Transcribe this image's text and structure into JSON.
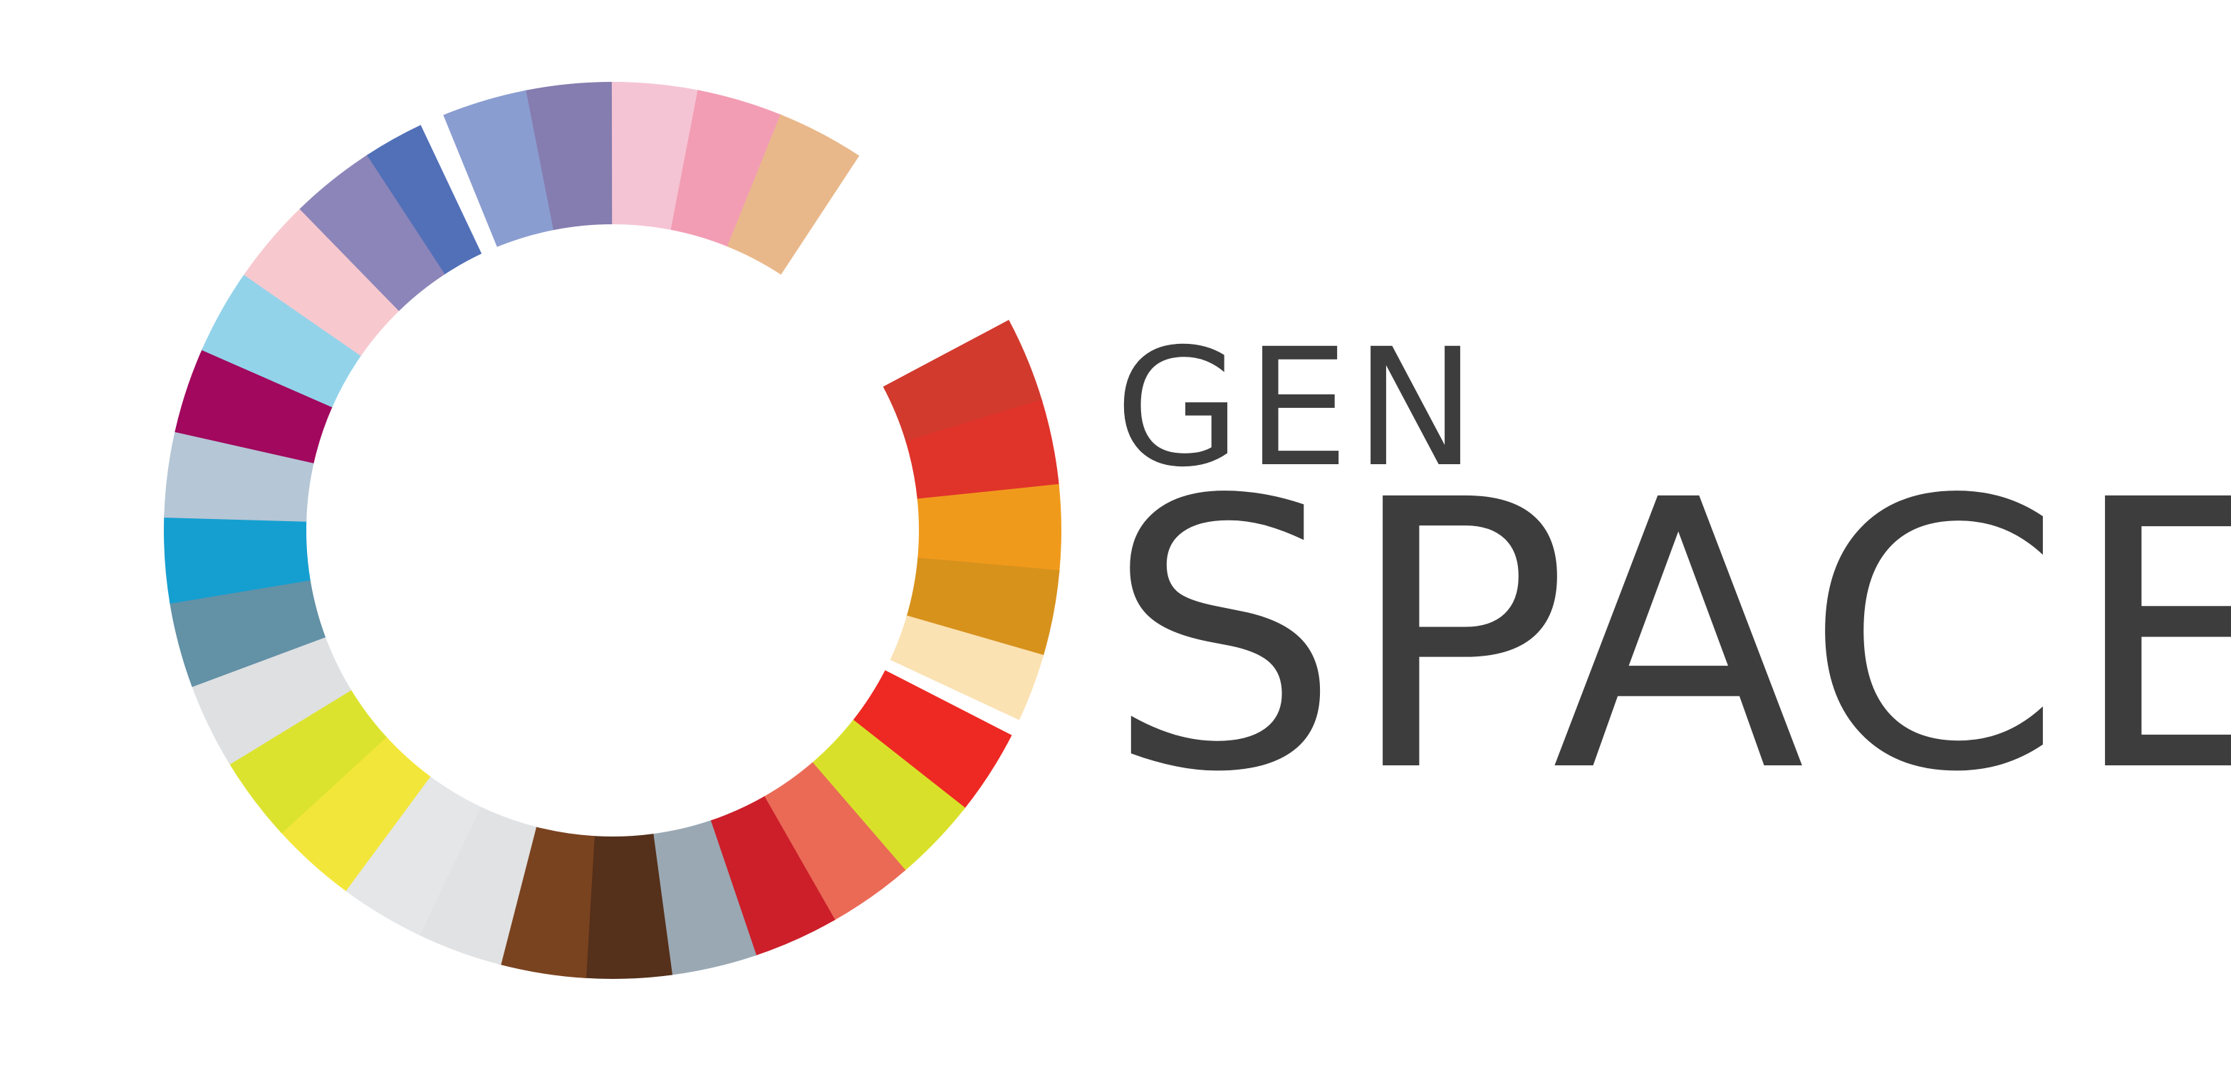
{
  "logo": {
    "line1": "GEN",
    "line2": "SPACE",
    "text_color": "#3d3d3d",
    "ring_segment_colors": [
      "#d23a2e",
      "#e0332a",
      "#f09a1c",
      "#d7921c",
      "#fbe2b3",
      "#ee2822",
      "#d9e02a",
      "#ea6a56",
      "#cc1f2a",
      "#9aa8b3",
      "#55301a",
      "#7a4320",
      "#e1e2e3",
      "#e4e6e8",
      "#f3e63a",
      "#dce32f",
      "#dfe0e2",
      "#6391a6",
      "#159fd0",
      "#b5c6d6",
      "#a1085e",
      "#93d3ea",
      "#f7c9cf",
      "#8c85b9",
      "#5270b8",
      "#8a9dd0",
      "#857caf",
      "#f5c4d4",
      "#f29db4",
      "#e9b88a"
    ]
  }
}
